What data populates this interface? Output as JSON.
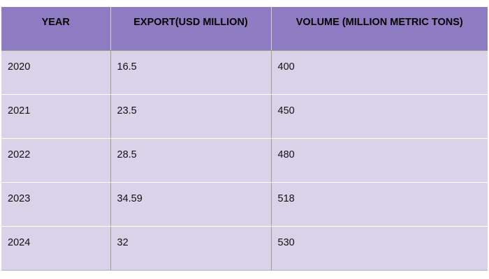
{
  "chart_data": {
    "type": "table",
    "columns": [
      "YEAR",
      "EXPORT(USD MILLION)",
      "VOLUME (MILLION METRIC TONS)"
    ],
    "rows": [
      [
        "2020",
        "16.5",
        "400"
      ],
      [
        "2021",
        "23.5",
        "450"
      ],
      [
        "2022",
        "28.5",
        "480"
      ],
      [
        "2023",
        "34.59",
        "518"
      ],
      [
        "2024",
        "32",
        "530"
      ]
    ]
  },
  "colors": {
    "header_background": "#8e7cc3",
    "row_background": "#d9d2e9"
  }
}
